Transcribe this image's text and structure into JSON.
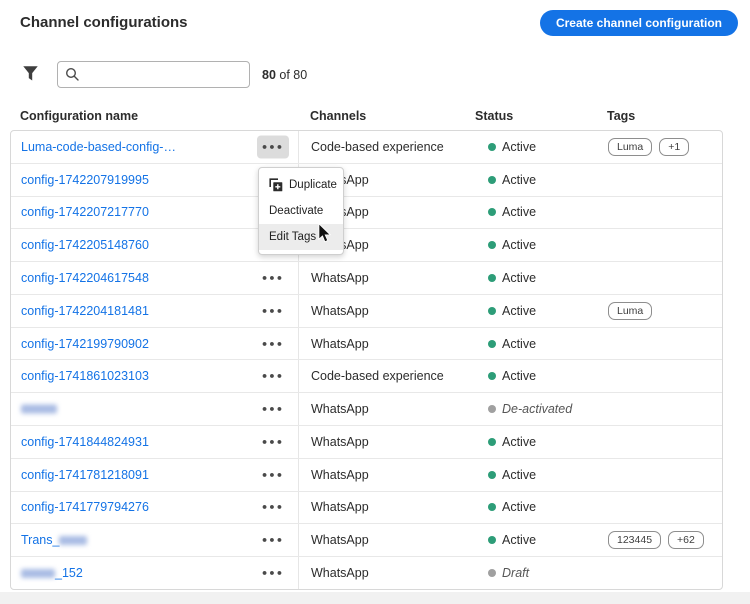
{
  "header": {
    "title": "Channel configurations",
    "create_button_label": "Create channel configuration",
    "accent_color": "#1473e6"
  },
  "toolbar": {
    "filter_icon": "funnel-icon",
    "search_icon": "search-icon",
    "search_value": "",
    "search_placeholder": "",
    "count_bold": "80",
    "count_rest": "of 80"
  },
  "table": {
    "columns": [
      "Configuration name",
      "Channels",
      "Status",
      "Tags"
    ],
    "status_colors": {
      "active": "#2d9d78",
      "inactive": "#a0a0a0"
    },
    "rows": [
      {
        "name": "Luma-code-based-config-…",
        "blur": "none",
        "channel": "Code-based experience",
        "status": "Active",
        "kind": "active",
        "tags": [
          "Luma",
          "+1"
        ],
        "menu_open": true
      },
      {
        "name": "config-1742207919995",
        "blur": "none",
        "channel": "WhatsApp",
        "status": "Active",
        "kind": "active",
        "tags": [],
        "menu_open": false
      },
      {
        "name": "config-1742207217770",
        "blur": "none",
        "channel": "WhatsApp",
        "status": "Active",
        "kind": "active",
        "tags": [],
        "menu_open": false
      },
      {
        "name": "config-1742205148760",
        "blur": "none",
        "channel": "WhatsApp",
        "status": "Active",
        "kind": "active",
        "tags": [],
        "menu_open": false
      },
      {
        "name": "config-1742204617548",
        "blur": "none",
        "channel": "WhatsApp",
        "status": "Active",
        "kind": "active",
        "tags": [],
        "menu_open": false
      },
      {
        "name": "config-1742204181481",
        "blur": "none",
        "channel": "WhatsApp",
        "status": "Active",
        "kind": "active",
        "tags": [
          "Luma"
        ],
        "menu_open": false
      },
      {
        "name": "config-1742199790902",
        "blur": "none",
        "channel": "WhatsApp",
        "status": "Active",
        "kind": "active",
        "tags": [],
        "menu_open": false
      },
      {
        "name": "config-1741861023103",
        "blur": "none",
        "channel": "Code-based experience",
        "status": "Active",
        "kind": "active",
        "tags": [],
        "menu_open": false
      },
      {
        "name": "",
        "blur": "full",
        "channel": "WhatsApp",
        "status": "De-activated",
        "kind": "inactive",
        "tags": [],
        "menu_open": false
      },
      {
        "name": "config-1741844824931",
        "blur": "none",
        "channel": "WhatsApp",
        "status": "Active",
        "kind": "active",
        "tags": [],
        "menu_open": false
      },
      {
        "name": "config-1741781218091",
        "blur": "none",
        "channel": "WhatsApp",
        "status": "Active",
        "kind": "active",
        "tags": [],
        "menu_open": false
      },
      {
        "name": "config-1741779794276",
        "blur": "none",
        "channel": "WhatsApp",
        "status": "Active",
        "kind": "active",
        "tags": [],
        "menu_open": false
      },
      {
        "name": "Trans_",
        "blur": "suffix",
        "channel": "WhatsApp",
        "status": "Active",
        "kind": "active",
        "tags": [
          "123445",
          "+62"
        ],
        "menu_open": false
      },
      {
        "name": "_152",
        "blur": "prefix",
        "channel": "WhatsApp",
        "status": "Draft",
        "kind": "inactive",
        "tags": [],
        "menu_open": false
      }
    ]
  },
  "menu": {
    "items": [
      {
        "label": "Duplicate",
        "icon": "duplicate-icon",
        "highlighted": false
      },
      {
        "label": "Deactivate",
        "icon": "",
        "highlighted": false
      },
      {
        "label": "Edit Tags",
        "icon": "",
        "highlighted": true
      }
    ]
  }
}
